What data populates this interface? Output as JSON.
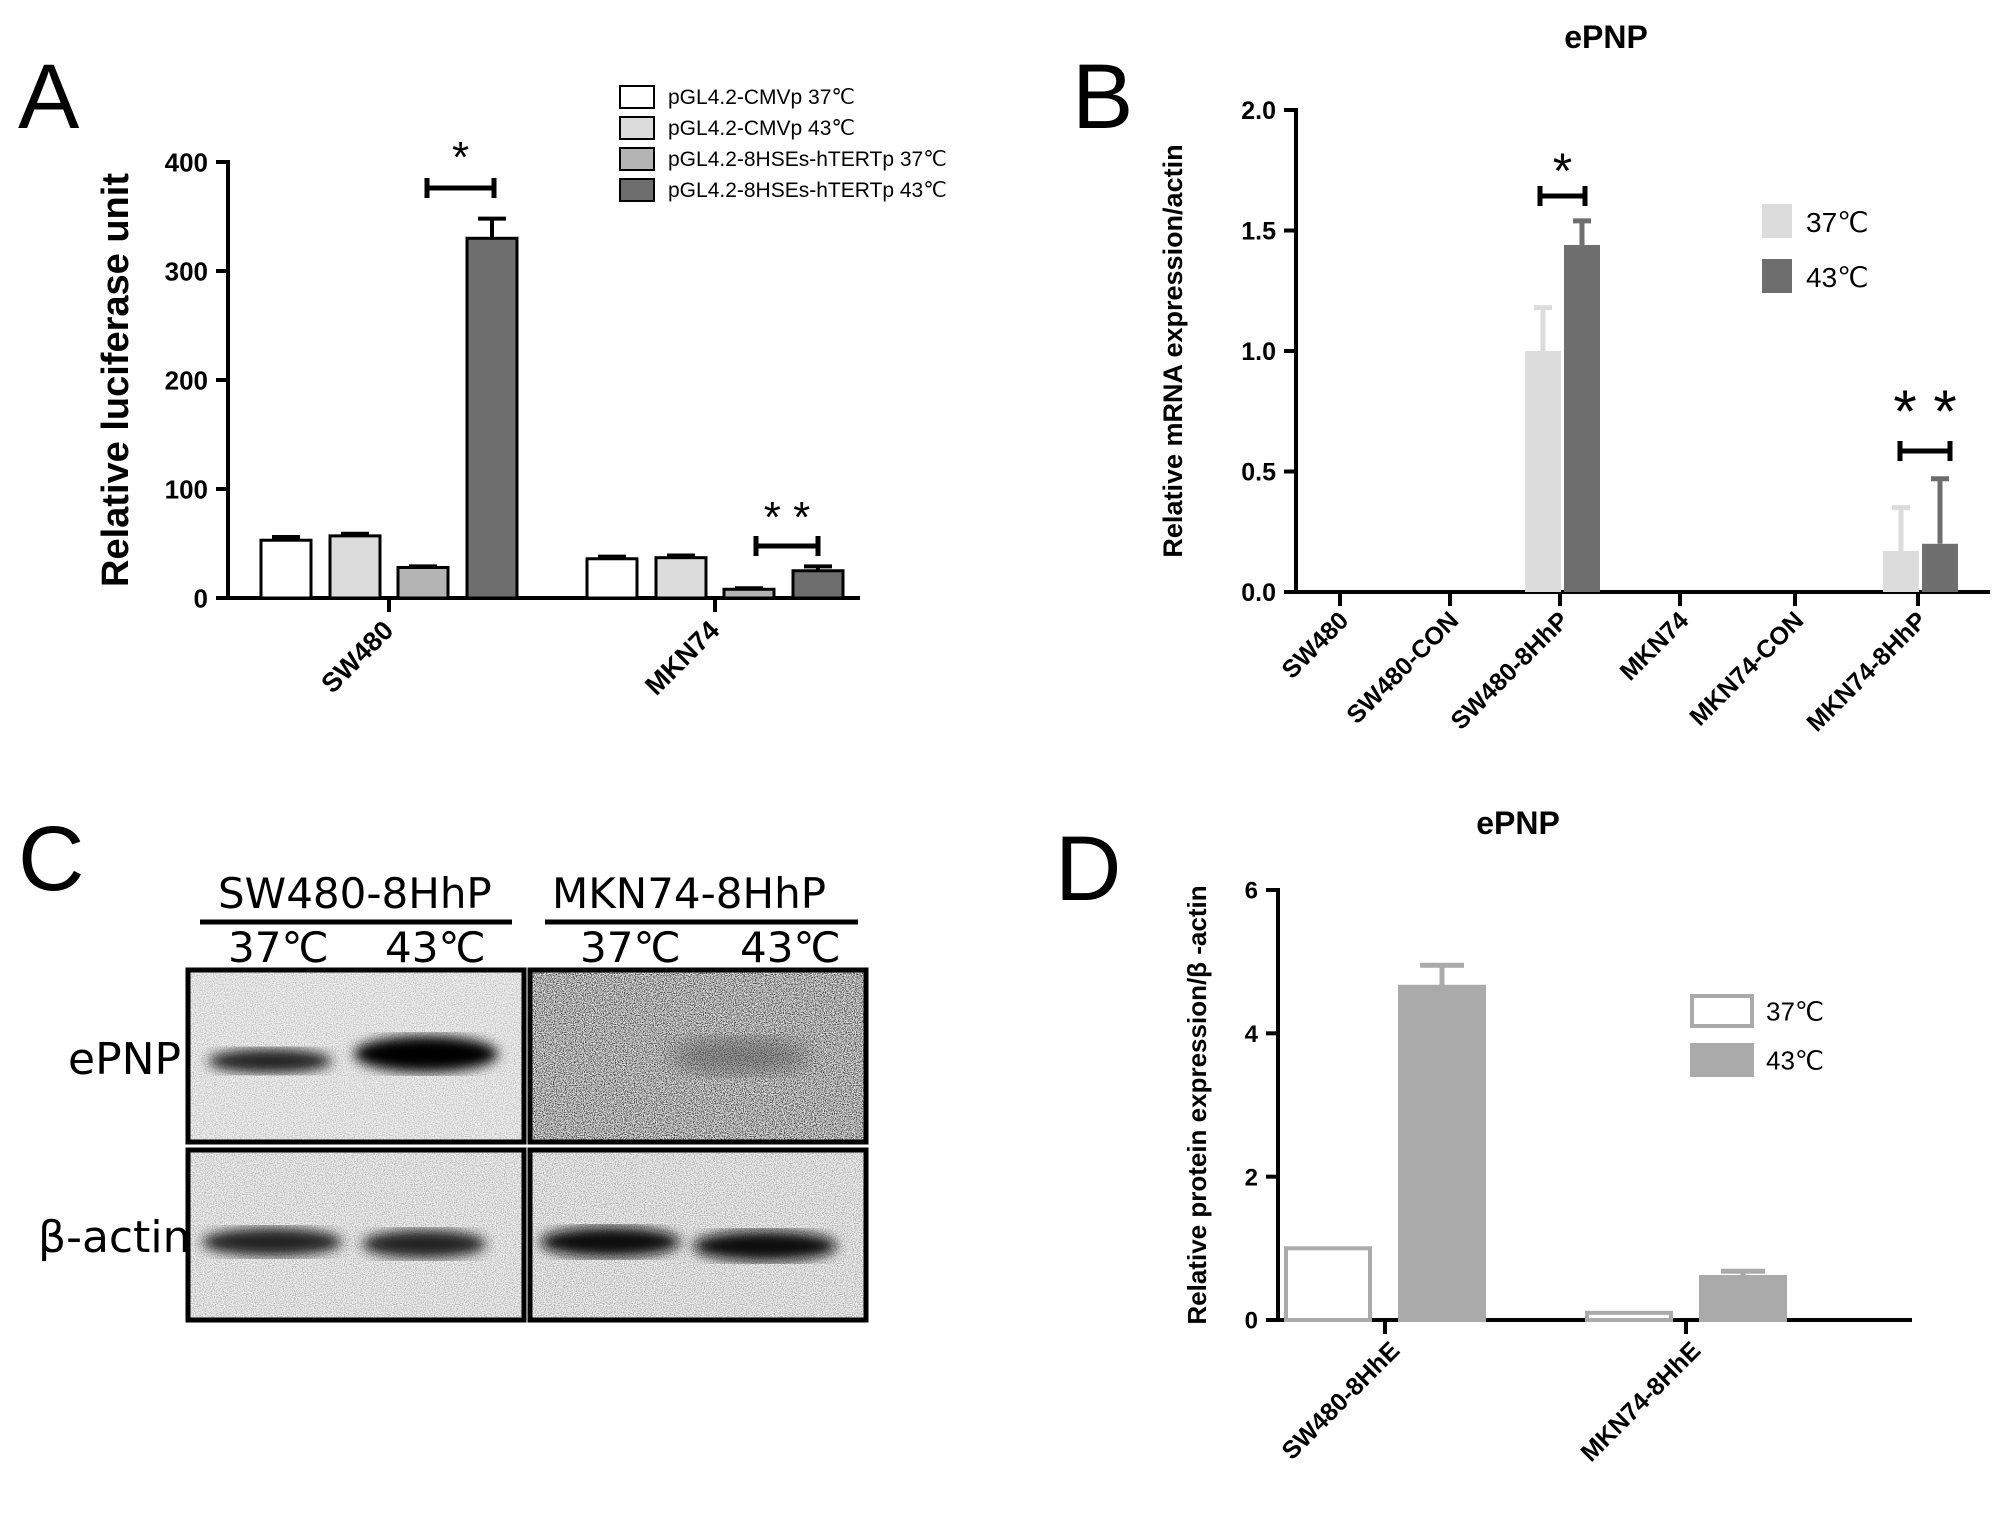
{
  "figure": {
    "panels": {
      "A": "A",
      "B": "B",
      "C": "C",
      "D": "D"
    }
  },
  "chart_data": [
    {
      "panel": "A",
      "type": "bar",
      "title": "",
      "xlabel": "",
      "ylabel": "Relative luciferase unit",
      "ylim": [
        0,
        400
      ],
      "yticks": [
        "0",
        "100",
        "200",
        "300",
        "400"
      ],
      "categories": [
        "SW480",
        "MKN74"
      ],
      "series": [
        {
          "name": "pGL4.2-CMVp 37℃",
          "color": "#ffffff",
          "values": [
            53,
            36
          ],
          "errors": [
            3,
            2
          ]
        },
        {
          "name": "pGL4.2-CMVp 43℃",
          "color": "#dcdcdc",
          "values": [
            57,
            37
          ],
          "errors": [
            2,
            2
          ]
        },
        {
          "name": "pGL4.2-8HSEs-hTERTp 37℃",
          "color": "#b4b4b4",
          "values": [
            28,
            8
          ],
          "errors": [
            1,
            1
          ]
        },
        {
          "name": "pGL4.2-8HSEs-hTERTp 43℃",
          "color": "#6e6e6e",
          "values": [
            330,
            25
          ],
          "errors": [
            18,
            4
          ]
        }
      ],
      "significance": [
        "*",
        "* *"
      ],
      "grid": false,
      "legend": "top-right"
    },
    {
      "panel": "B",
      "type": "bar",
      "title": "ePNP",
      "xlabel": "",
      "ylabel": "Relative mRNA expression/actin",
      "ylim": [
        0,
        2.0
      ],
      "yticks": [
        "0.0",
        "0.5",
        "1.0",
        "1.5",
        "2.0"
      ],
      "categories": [
        "SW480",
        "SW480-CON",
        "SW480-8HhP",
        "MKN74",
        "MKN74-CON",
        "MKN74-8HhP"
      ],
      "series": [
        {
          "name": "37℃",
          "color": "#dcdcdc",
          "values": [
            0,
            0,
            1.0,
            0,
            0,
            0.17
          ],
          "errors": [
            0,
            0,
            0.18,
            0,
            0,
            0.18
          ]
        },
        {
          "name": "43℃",
          "color": "#6e6e6e",
          "values": [
            0,
            0,
            1.44,
            0,
            0,
            0.2
          ],
          "errors": [
            0,
            0,
            0.1,
            0,
            0,
            0.27
          ]
        }
      ],
      "significance": [
        "*",
        "* *"
      ],
      "grid": false,
      "legend": "right"
    },
    {
      "panel": "D",
      "type": "bar",
      "title": "ePNP",
      "xlabel": "",
      "ylabel": "Relative protein expression/β -actin",
      "ylim": [
        0,
        6
      ],
      "yticks": [
        "0",
        "2",
        "4",
        "6"
      ],
      "categories": [
        "SW480-8HhE",
        "MKN74-8HhE"
      ],
      "series": [
        {
          "name": "37℃",
          "color": "#ffffff",
          "values": [
            1.0,
            0.1
          ],
          "errors": [
            0,
            0
          ]
        },
        {
          "name": "43℃",
          "color": "#aaaaaa",
          "values": [
            4.65,
            0.6
          ],
          "errors": [
            0.3,
            0.08
          ]
        }
      ],
      "grid": false,
      "legend": "right"
    }
  ],
  "blot": {
    "groups": [
      "SW480-8HhP",
      "MKN74-8HhP"
    ],
    "temps": [
      "37℃",
      "43℃",
      "37℃",
      "43℃"
    ],
    "rows": [
      "ePNP",
      "β-actin"
    ]
  }
}
